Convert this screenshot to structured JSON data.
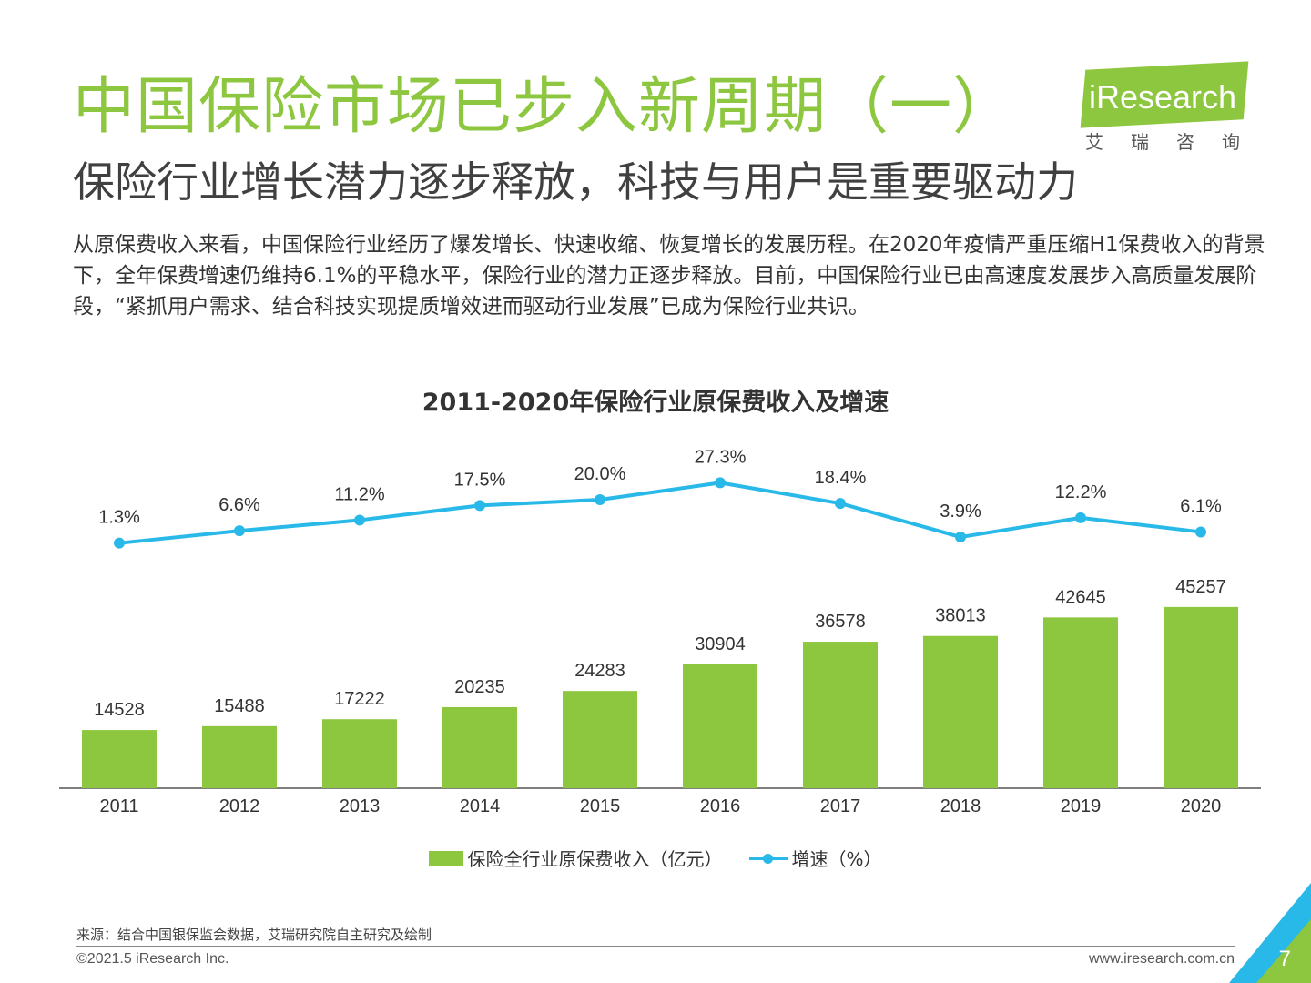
{
  "header": {
    "title": "中国保险市场已步入新周期（一）",
    "subtitle": "保险行业增长潜力逐步释放，科技与用户是重要驱动力"
  },
  "logo": {
    "word": "iResearch",
    "cn": "艾瑞咨询",
    "color": "#8dc63f"
  },
  "intro": "从原保费收入来看，中国保险行业经历了爆发增长、快速收缩、恢复增长的发展历程。在2020年疫情严重压缩H1保费收入的背景下，全年保费增速仍维持6.1%的平稳水平，保险行业的潜力正逐步释放。目前，中国保险行业已由高速度发展步入高质量发展阶段，“紧抓用户需求、结合科技实现提质增效进而驱动行业发展”已成为保险行业共识。",
  "chart_data": {
    "type": "bar",
    "title": "2011-2020年保险行业原保费收入及增速",
    "categories": [
      "2011",
      "2012",
      "2013",
      "2014",
      "2015",
      "2016",
      "2017",
      "2018",
      "2019",
      "2020"
    ],
    "series": [
      {
        "name": "保险全行业原保费收入（亿元）",
        "type": "bar",
        "color": "#8dc63f",
        "values": [
          14528,
          15488,
          17222,
          20235,
          24283,
          30904,
          36578,
          38013,
          42645,
          45257
        ]
      },
      {
        "name": "增速（%）",
        "type": "line",
        "color": "#29b9e9",
        "values": [
          1.3,
          6.6,
          11.2,
          17.5,
          20.0,
          27.3,
          18.4,
          3.9,
          12.2,
          6.1
        ],
        "labels": [
          "1.3%",
          "6.6%",
          "11.2%",
          "17.5%",
          "20.0%",
          "27.3%",
          "18.4%",
          "3.9%",
          "12.2%",
          "6.1%"
        ]
      }
    ],
    "grid": false,
    "legend": "bottom-center"
  },
  "footer": {
    "source": "来源：结合中国银保监会数据，艾瑞研究院自主研究及绘制",
    "copyright": "©2021.5 iResearch Inc.",
    "url": "www.iresearch.com.cn",
    "page": "7"
  }
}
